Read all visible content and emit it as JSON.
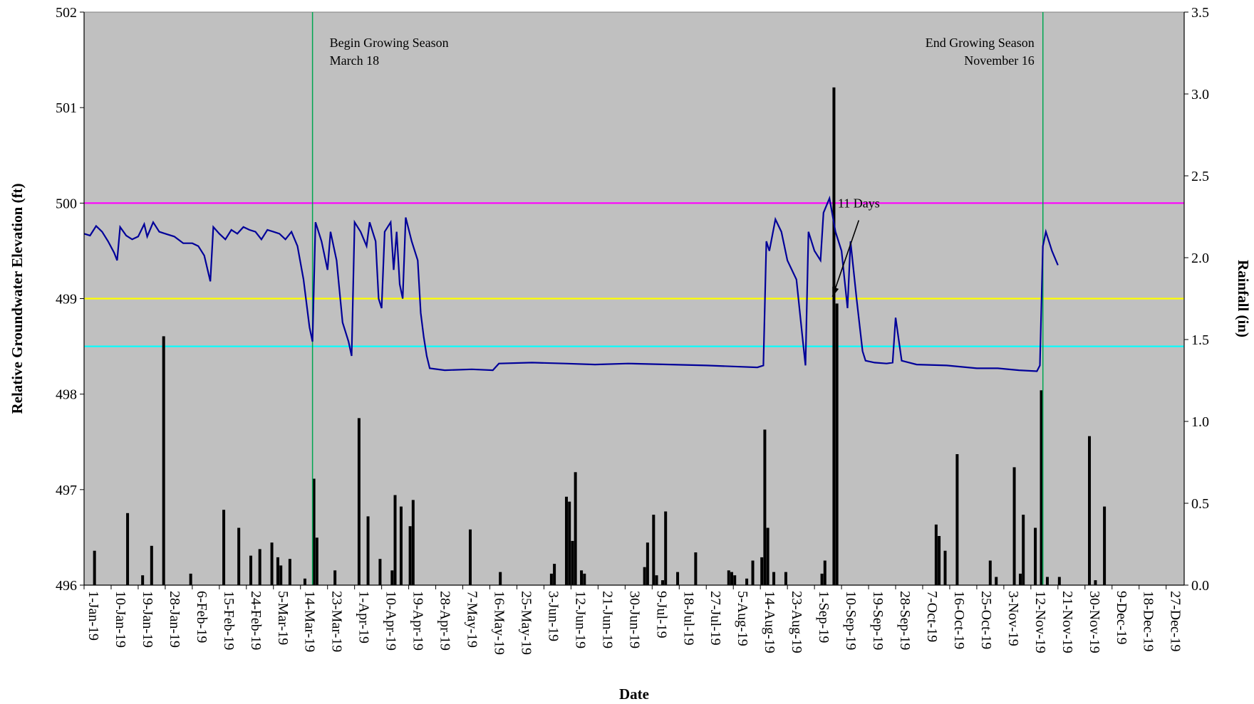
{
  "chart_data": {
    "type": "line+bar",
    "title": "",
    "xlabel": "Date",
    "ylabel_left": "Relative Groundwater Elevation (ft)",
    "ylabel_right": "Rainfall (in)",
    "x_tick_labels": [
      "1-Jan-19",
      "10-Jan-19",
      "19-Jan-19",
      "28-Jan-19",
      "6-Feb-19",
      "15-Feb-19",
      "24-Feb-19",
      "5-Mar-19",
      "14-Mar-19",
      "23-Mar-19",
      "1-Apr-19",
      "10-Apr-19",
      "19-Apr-19",
      "28-Apr-19",
      "7-May-19",
      "16-May-19",
      "25-May-19",
      "3-Jun-19",
      "12-Jun-19",
      "21-Jun-19",
      "30-Jun-19",
      "9-Jul-19",
      "18-Jul-19",
      "27-Jul-19",
      "5-Aug-19",
      "14-Aug-19",
      "23-Aug-19",
      "1-Sep-19",
      "10-Sep-19",
      "19-Sep-19",
      "28-Sep-19",
      "7-Oct-19",
      "16-Oct-19",
      "25-Oct-19",
      "3-Nov-19",
      "12-Nov-19",
      "21-Nov-19",
      "30-Nov-19",
      "9-Dec-19",
      "18-Dec-19",
      "27-Dec-19"
    ],
    "x_range": [
      "1-Jan-19",
      "2-Jan-20"
    ],
    "y_left_range": [
      496,
      502
    ],
    "y_left_ticks": [
      "496",
      "497",
      "498",
      "499",
      "500",
      "501",
      "502"
    ],
    "y_right_range": [
      0,
      3.5
    ],
    "y_right_ticks": [
      "0.0",
      "0.5",
      "1.0",
      "1.5",
      "2.0",
      "2.5",
      "3.0",
      "3.5"
    ],
    "reference_lines": [
      {
        "value": 500,
        "color": "#ff00ff"
      },
      {
        "value": 499,
        "color": "#ffff00"
      },
      {
        "value": 498.5,
        "color": "#00ffff"
      }
    ],
    "vertical_markers": [
      {
        "date": "18-Mar-19",
        "color": "#00a651",
        "label_line1": "Begin Growing Season",
        "label_line2": "March 18",
        "align": "start"
      },
      {
        "date": "16-Nov-19",
        "color": "#00a651",
        "label_line1": "End Growing Season",
        "label_line2": "November 16",
        "align": "end"
      }
    ],
    "annotation": {
      "text": "11 Days",
      "from_date": "11-Sep-19",
      "from_value": 499.85,
      "to_date": "7-Sep-19",
      "to_value": 499.02
    },
    "groundwater_series": {
      "color": "#000099",
      "points": [
        [
          "1-Jan-19",
          499.68
        ],
        [
          "3-Jan-19",
          499.66
        ],
        [
          "5-Jan-19",
          499.76
        ],
        [
          "7-Jan-19",
          499.7
        ],
        [
          "9-Jan-19",
          499.6
        ],
        [
          "11-Jan-19",
          499.48
        ],
        [
          "12-Jan-19",
          499.4
        ],
        [
          "13-Jan-19",
          499.75
        ],
        [
          "15-Jan-19",
          499.66
        ],
        [
          "17-Jan-19",
          499.62
        ],
        [
          "19-Jan-19",
          499.65
        ],
        [
          "21-Jan-19",
          499.78
        ],
        [
          "22-Jan-19",
          499.65
        ],
        [
          "24-Jan-19",
          499.8
        ],
        [
          "26-Jan-19",
          499.7
        ],
        [
          "28-Jan-19",
          499.68
        ],
        [
          "31-Jan-19",
          499.65
        ],
        [
          "3-Feb-19",
          499.58
        ],
        [
          "6-Feb-19",
          499.58
        ],
        [
          "8-Feb-19",
          499.55
        ],
        [
          "10-Feb-19",
          499.45
        ],
        [
          "12-Feb-19",
          499.18
        ],
        [
          "13-Feb-19",
          499.75
        ],
        [
          "15-Feb-19",
          499.68
        ],
        [
          "17-Feb-19",
          499.62
        ],
        [
          "19-Feb-19",
          499.72
        ],
        [
          "21-Feb-19",
          499.68
        ],
        [
          "23-Feb-19",
          499.75
        ],
        [
          "25-Feb-19",
          499.72
        ],
        [
          "27-Feb-19",
          499.7
        ],
        [
          "1-Mar-19",
          499.62
        ],
        [
          "3-Mar-19",
          499.72
        ],
        [
          "5-Mar-19",
          499.7
        ],
        [
          "7-Mar-19",
          499.68
        ],
        [
          "9-Mar-19",
          499.62
        ],
        [
          "11-Mar-19",
          499.7
        ],
        [
          "13-Mar-19",
          499.55
        ],
        [
          "15-Mar-19",
          499.2
        ],
        [
          "17-Mar-19",
          498.7
        ],
        [
          "18-Mar-19",
          498.55
        ],
        [
          "19-Mar-19",
          499.8
        ],
        [
          "21-Mar-19",
          499.6
        ],
        [
          "23-Mar-19",
          499.3
        ],
        [
          "24-Mar-19",
          499.7
        ],
        [
          "26-Mar-19",
          499.4
        ],
        [
          "28-Mar-19",
          498.75
        ],
        [
          "30-Mar-19",
          498.55
        ],
        [
          "31-Mar-19",
          498.4
        ],
        [
          "1-Apr-19",
          499.8
        ],
        [
          "3-Apr-19",
          499.7
        ],
        [
          "5-Apr-19",
          499.55
        ],
        [
          "6-Apr-19",
          499.8
        ],
        [
          "8-Apr-19",
          499.6
        ],
        [
          "9-Apr-19",
          499.0
        ],
        [
          "10-Apr-19",
          498.9
        ],
        [
          "11-Apr-19",
          499.7
        ],
        [
          "13-Apr-19",
          499.8
        ],
        [
          "14-Apr-19",
          499.3
        ],
        [
          "15-Apr-19",
          499.7
        ],
        [
          "16-Apr-19",
          499.15
        ],
        [
          "17-Apr-19",
          499.0
        ],
        [
          "18-Apr-19",
          499.85
        ],
        [
          "20-Apr-19",
          499.6
        ],
        [
          "22-Apr-19",
          499.4
        ],
        [
          "23-Apr-19",
          498.85
        ],
        [
          "24-Apr-19",
          498.6
        ],
        [
          "25-Apr-19",
          498.4
        ],
        [
          "26-Apr-19",
          498.27
        ],
        [
          "1-May-19",
          498.25
        ],
        [
          "10-May-19",
          498.26
        ],
        [
          "17-May-19",
          498.25
        ],
        [
          "19-May-19",
          498.32
        ],
        [
          "30-May-19",
          498.33
        ],
        [
          "10-Jun-19",
          498.32
        ],
        [
          "20-Jun-19",
          498.31
        ],
        [
          "1-Jul-19",
          498.32
        ],
        [
          "15-Jul-19",
          498.31
        ],
        [
          "27-Jul-19",
          498.3
        ],
        [
          "5-Aug-19",
          498.29
        ],
        [
          "13-Aug-19",
          498.28
        ],
        [
          "15-Aug-19",
          498.3
        ],
        [
          "16-Aug-19",
          499.6
        ],
        [
          "17-Aug-19",
          499.5
        ],
        [
          "19-Aug-19",
          499.83
        ],
        [
          "21-Aug-19",
          499.7
        ],
        [
          "23-Aug-19",
          499.4
        ],
        [
          "26-Aug-19",
          499.2
        ],
        [
          "28-Aug-19",
          498.6
        ],
        [
          "29-Aug-19",
          498.3
        ],
        [
          "30-Aug-19",
          499.7
        ],
        [
          "1-Sep-19",
          499.5
        ],
        [
          "3-Sep-19",
          499.4
        ],
        [
          "4-Sep-19",
          499.9
        ],
        [
          "6-Sep-19",
          500.05
        ],
        [
          "8-Sep-19",
          499.7
        ],
        [
          "10-Sep-19",
          499.5
        ],
        [
          "11-Sep-19",
          499.2
        ],
        [
          "12-Sep-19",
          498.9
        ],
        [
          "13-Sep-19",
          499.6
        ],
        [
          "15-Sep-19",
          499.0
        ],
        [
          "17-Sep-19",
          498.45
        ],
        [
          "18-Sep-19",
          498.35
        ],
        [
          "21-Sep-19",
          498.33
        ],
        [
          "25-Sep-19",
          498.32
        ],
        [
          "27-Sep-19",
          498.33
        ],
        [
          "28-Sep-19",
          498.8
        ],
        [
          "30-Sep-19",
          498.35
        ],
        [
          "5-Oct-19",
          498.31
        ],
        [
          "15-Oct-19",
          498.3
        ],
        [
          "25-Oct-19",
          498.27
        ],
        [
          "1-Nov-19",
          498.27
        ],
        [
          "8-Nov-19",
          498.25
        ],
        [
          "14-Nov-19",
          498.24
        ],
        [
          "15-Nov-19",
          498.3
        ],
        [
          "16-Nov-19",
          499.55
        ],
        [
          "17-Nov-19",
          499.7
        ],
        [
          "19-Nov-19",
          499.5
        ],
        [
          "21-Nov-19",
          499.35
        ]
      ]
    },
    "rainfall_series": {
      "color": "#000000",
      "points": [
        [
          "4-Jan-19",
          0.21
        ],
        [
          "15-Jan-19",
          0.44
        ],
        [
          "20-Jan-19",
          0.06
        ],
        [
          "23-Jan-19",
          0.24
        ],
        [
          "27-Jan-19",
          1.52
        ],
        [
          "5-Feb-19",
          0.07
        ],
        [
          "16-Feb-19",
          0.46
        ],
        [
          "21-Feb-19",
          0.35
        ],
        [
          "25-Feb-19",
          0.18
        ],
        [
          "28-Feb-19",
          0.22
        ],
        [
          "4-Mar-19",
          0.26
        ],
        [
          "6-Mar-19",
          0.17
        ],
        [
          "7-Mar-19",
          0.12
        ],
        [
          "10-Mar-19",
          0.16
        ],
        [
          "15-Mar-19",
          0.04
        ],
        [
          "18-Mar-19",
          0.65
        ],
        [
          "19-Mar-19",
          0.29
        ],
        [
          "25-Mar-19",
          0.09
        ],
        [
          "2-Apr-19",
          1.02
        ],
        [
          "5-Apr-19",
          0.42
        ],
        [
          "9-Apr-19",
          0.16
        ],
        [
          "13-Apr-19",
          0.09
        ],
        [
          "14-Apr-19",
          0.55
        ],
        [
          "16-Apr-19",
          0.48
        ],
        [
          "19-Apr-19",
          0.36
        ],
        [
          "20-Apr-19",
          0.52
        ],
        [
          "9-May-19",
          0.34
        ],
        [
          "19-May-19",
          0.08
        ],
        [
          "5-Jun-19",
          0.07
        ],
        [
          "6-Jun-19",
          0.13
        ],
        [
          "10-Jun-19",
          0.54
        ],
        [
          "11-Jun-19",
          0.51
        ],
        [
          "12-Jun-19",
          0.27
        ],
        [
          "13-Jun-19",
          0.69
        ],
        [
          "15-Jun-19",
          0.09
        ],
        [
          "16-Jun-19",
          0.07
        ],
        [
          "6-Jul-19",
          0.11
        ],
        [
          "7-Jul-19",
          0.26
        ],
        [
          "9-Jul-19",
          0.43
        ],
        [
          "10-Jul-19",
          0.06
        ],
        [
          "12-Jul-19",
          0.03
        ],
        [
          "13-Jul-19",
          0.45
        ],
        [
          "17-Jul-19",
          0.08
        ],
        [
          "23-Jul-19",
          0.2
        ],
        [
          "3-Aug-19",
          0.09
        ],
        [
          "4-Aug-19",
          0.08
        ],
        [
          "5-Aug-19",
          0.06
        ],
        [
          "9-Aug-19",
          0.04
        ],
        [
          "11-Aug-19",
          0.15
        ],
        [
          "14-Aug-19",
          0.17
        ],
        [
          "15-Aug-19",
          0.95
        ],
        [
          "16-Aug-19",
          0.35
        ],
        [
          "18-Aug-19",
          0.08
        ],
        [
          "22-Aug-19",
          0.08
        ],
        [
          "3-Sep-19",
          0.07
        ],
        [
          "4-Sep-19",
          0.15
        ],
        [
          "7-Sep-19",
          3.04
        ],
        [
          "8-Sep-19",
          1.72
        ],
        [
          "11-Oct-19",
          0.37
        ],
        [
          "12-Oct-19",
          0.3
        ],
        [
          "14-Oct-19",
          0.21
        ],
        [
          "18-Oct-19",
          0.8
        ],
        [
          "29-Oct-19",
          0.15
        ],
        [
          "31-Oct-19",
          0.05
        ],
        [
          "6-Nov-19",
          0.72
        ],
        [
          "8-Nov-19",
          0.07
        ],
        [
          "9-Nov-19",
          0.43
        ],
        [
          "13-Nov-19",
          0.35
        ],
        [
          "15-Nov-19",
          1.19
        ],
        [
          "17-Nov-19",
          0.05
        ],
        [
          "21-Nov-19",
          0.05
        ],
        [
          "1-Dec-19",
          0.91
        ],
        [
          "3-Dec-19",
          0.03
        ],
        [
          "6-Dec-19",
          0.48
        ]
      ]
    }
  }
}
